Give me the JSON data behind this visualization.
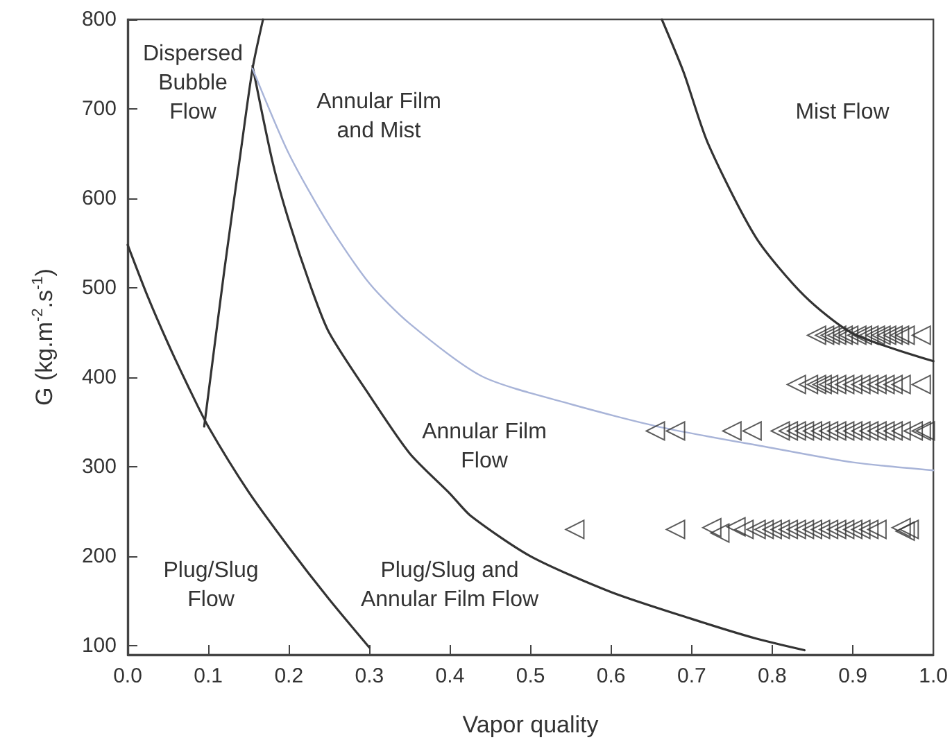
{
  "chart_data": {
    "type": "line",
    "xlabel": "Vapor quality",
    "ylabel": "G (kg.m$^{-2}$.s$^{-1}$)",
    "xlim": [
      0,
      1
    ],
    "ylim": [
      90,
      800
    ],
    "xticks": [
      {
        "value": 0,
        "label": "0.0"
      },
      0.1,
      0.2,
      0.3,
      0.4,
      0.5,
      0.6,
      0.7,
      0.8,
      0.9,
      {
        "value": 1,
        "label": "1.0"
      }
    ],
    "yticks": [
      100,
      200,
      300,
      400,
      500,
      600,
      700,
      800
    ],
    "grid": false,
    "line_style": "solid",
    "series": [
      {
        "color": "#333333",
        "x": [
          0,
          0.025,
          0.05,
          0.075,
          0.1,
          0.15,
          0.2,
          0.25,
          0.3
        ],
        "values": [
          548,
          490,
          438,
          390,
          345,
          272,
          210,
          152,
          98
        ]
      },
      {
        "color": "#333333",
        "x": [
          0.095,
          0.12,
          0.14,
          0.155,
          0.168
        ],
        "values": [
          345,
          520,
          650,
          745,
          800
        ]
      },
      {
        "color": "#333333",
        "x": [
          0.155,
          0.18,
          0.2,
          0.227,
          0.25,
          0.3,
          0.35,
          0.4,
          0.426,
          0.5,
          0.6,
          0.7,
          0.78,
          0.84
        ],
        "values": [
          748,
          640,
          575,
          502,
          450,
          380,
          315,
          270,
          245,
          200,
          160,
          130,
          108,
          95
        ]
      },
      {
        "color": "#a8b4d8",
        "x": [
          0.155,
          0.2,
          0.25,
          0.3,
          0.35,
          0.44,
          0.55,
          0.663,
          0.8,
          0.9,
          1.0
        ],
        "values": [
          745,
          650,
          570,
          505,
          460,
          401,
          370,
          344,
          321,
          305,
          296
        ]
      },
      {
        "color": "#333333",
        "x": [
          0.663,
          0.69,
          0.72,
          0.78,
          0.84,
          0.9,
          1.0
        ],
        "values": [
          800,
          741,
          662,
          556,
          491,
          449,
          418
        ]
      },
      {
        "type": "scatter",
        "color": "#333333",
        "marker": "triangle",
        "x": [
          0.855,
          0.865,
          0.872,
          0.88,
          0.888,
          0.895,
          0.905,
          0.912,
          0.92,
          0.928,
          0.935,
          0.942,
          0.95,
          0.958,
          0.965,
          0.985,
          0.83,
          0.845,
          0.855,
          0.862,
          0.87,
          0.88,
          0.89,
          0.9,
          0.91,
          0.92,
          0.93,
          0.94,
          0.95,
          0.96,
          0.985,
          0.655,
          0.68,
          0.75,
          0.775,
          0.81,
          0.82,
          0.83,
          0.84,
          0.85,
          0.86,
          0.87,
          0.88,
          0.89,
          0.9,
          0.91,
          0.92,
          0.93,
          0.94,
          0.95,
          0.96,
          0.975,
          0.985,
          0.99,
          0.555,
          0.68,
          0.725,
          0.735,
          0.755,
          0.765,
          0.78,
          0.79,
          0.8,
          0.81,
          0.82,
          0.83,
          0.84,
          0.85,
          0.86,
          0.87,
          0.88,
          0.89,
          0.9,
          0.91,
          0.92,
          0.93,
          0.96,
          0.965,
          0.97
        ],
        "values": [
          447,
          447,
          447,
          447,
          447,
          447,
          447,
          447,
          447,
          447,
          447,
          447,
          447,
          447,
          447,
          447,
          392,
          392,
          392,
          392,
          392,
          392,
          392,
          392,
          392,
          392,
          392,
          392,
          392,
          392,
          392,
          340,
          340,
          340,
          340,
          340,
          340,
          340,
          340,
          340,
          340,
          340,
          340,
          340,
          340,
          340,
          340,
          340,
          340,
          340,
          340,
          340,
          340,
          340,
          230,
          230,
          232,
          226,
          233,
          230,
          230,
          230,
          230,
          230,
          230,
          230,
          230,
          230,
          230,
          230,
          230,
          230,
          230,
          230,
          230,
          230,
          232,
          228,
          230
        ]
      }
    ],
    "annotations": [
      "Dispersed\nBubble\nFlow",
      "Annular Film\nand Mist",
      "Mist Flow",
      "Annular Film\nFlow",
      "Plug/Slug\nFlow",
      "Plug/Slug and\nAnnular Film Flow"
    ]
  }
}
